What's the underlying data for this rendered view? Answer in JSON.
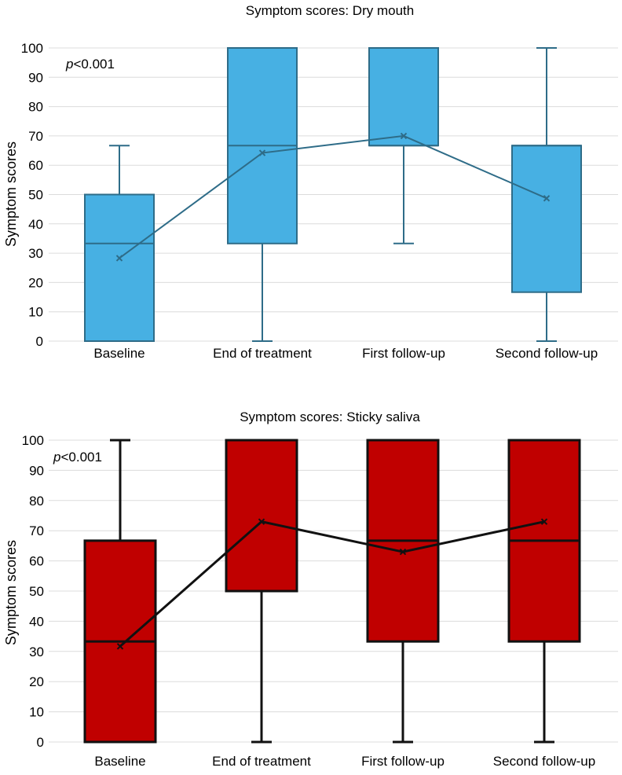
{
  "chart_data": [
    {
      "type": "box",
      "title": "Symptom scores: Dry mouth",
      "ylabel": "Symptom scores",
      "xlabel": "",
      "ylim": [
        0,
        100
      ],
      "yticks": [
        0,
        10,
        20,
        30,
        40,
        50,
        60,
        70,
        80,
        90,
        100
      ],
      "grid": true,
      "annotation": {
        "italic": "p",
        "rest": "<0.001"
      },
      "colors": {
        "fill": "#47b0e3",
        "stroke": "#2e6c88",
        "mean_line": "#2e6c88"
      },
      "categories": [
        "Baseline",
        "End of treatment",
        "First follow-up",
        "Second follow-up"
      ],
      "boxes": [
        {
          "min": 0,
          "q1": 0,
          "median": 33.3,
          "q3": 50,
          "max": 66.7,
          "mean": 28.3
        },
        {
          "min": 0,
          "q1": 33.3,
          "median": 66.7,
          "q3": 100,
          "max": 100,
          "mean": 64.2
        },
        {
          "min": 33.3,
          "q1": 66.7,
          "median": 66.7,
          "q3": 100,
          "max": 100,
          "mean": 70.0
        },
        {
          "min": 0,
          "q1": 16.7,
          "median": 66.7,
          "q3": 66.7,
          "max": 100,
          "mean": 48.7
        }
      ]
    },
    {
      "type": "box",
      "title": "Symptom scores: Sticky saliva",
      "ylabel": "Symptom scores",
      "xlabel": "",
      "ylim": [
        0,
        100
      ],
      "yticks": [
        0,
        10,
        20,
        30,
        40,
        50,
        60,
        70,
        80,
        90,
        100
      ],
      "grid": true,
      "annotation": {
        "italic": "p",
        "rest": "<0.001"
      },
      "colors": {
        "fill": "#c00000",
        "stroke": "#111111",
        "mean_line": "#111111"
      },
      "categories": [
        "Baseline",
        "End of treatment",
        "First follow-up",
        "Second follow-up"
      ],
      "boxes": [
        {
          "min": 0,
          "q1": 0,
          "median": 33.3,
          "q3": 66.7,
          "max": 100,
          "mean": 31.7
        },
        {
          "min": 0,
          "q1": 50,
          "median": 100,
          "q3": 100,
          "max": 100,
          "mean": 73.0
        },
        {
          "min": 0,
          "q1": 33.3,
          "median": 66.7,
          "q3": 100,
          "max": 100,
          "mean": 63.0
        },
        {
          "min": 0,
          "q1": 33.3,
          "median": 66.7,
          "q3": 100,
          "max": 100,
          "mean": 73.0
        }
      ]
    }
  ]
}
